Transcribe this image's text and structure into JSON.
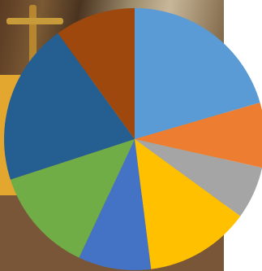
{
  "chart_data": {
    "type": "pie",
    "start_angle_deg": 0,
    "direction": "clockwise",
    "slices": [
      {
        "value": 20.5,
        "color": "#5b9bd5"
      },
      {
        "value": 8.0,
        "color": "#ed7d31"
      },
      {
        "value": 6.5,
        "color": "#a5a5a5"
      },
      {
        "value": 13.0,
        "color": "#ffc000"
      },
      {
        "value": 9.0,
        "color": "#4472c4"
      },
      {
        "value": 13.0,
        "color": "#70ad47"
      },
      {
        "value": 20.0,
        "color": "#255e91"
      },
      {
        "value": 10.0,
        "color": "#9e480e"
      }
    ]
  }
}
